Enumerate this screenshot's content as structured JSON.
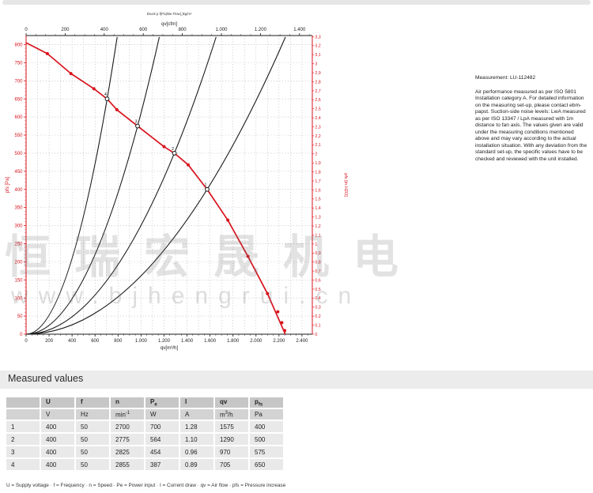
{
  "watermark": {
    "line1": "恒瑞宏晟机电",
    "line2": "www.bjhengrui.cn"
  },
  "side_text": {
    "measurement": "Measurement: LU-112482",
    "paragraph": "Air performance measured as per ISO 5801 Installation category A. For detailed information on the measuring set-up, please contact ebm-papst. Suction-side noise levels: LwA measured as per ISO 13347 / LpA measured with 1m distance to fan axis. The values given are valid under the measuring conditions mentioned above and may vary according to the actual installation situation. With any deviation from the standard set-up, the specific values have to be checked and reviewed with the unit installed."
  },
  "chart_data": {
    "type": "line",
    "title": "Druck p f(Pa)/Be Flow(,)kg/m³",
    "colors": {
      "axis_red": "#d8141e",
      "curve_red": "#d8141e",
      "black": "#1a1a1a",
      "grid": "#ababab"
    },
    "top_axis": {
      "label": "qv[cfm]",
      "tick_step": 200,
      "tick_labels": [
        "0",
        "200",
        "400",
        "600",
        "800",
        "1.000",
        "1.200",
        "1.400"
      ],
      "m3h_per_cfm": 1.699
    },
    "x_axis": {
      "label": "qv[m³/h]",
      "min": 0,
      "max": 2400,
      "plot_max": 2490,
      "major": 200,
      "minor": 50,
      "tick_labels": [
        "0",
        "200",
        "400",
        "600",
        "800",
        "1.000",
        "1.200",
        "1.400",
        "1.600",
        "1.800",
        "2.000",
        "2.200",
        "2.400"
      ]
    },
    "y_axis_left": {
      "label": "pfs [Pa]",
      "min": 0,
      "max": 800,
      "plot_max": 825,
      "major": 50,
      "minor": 10
    },
    "y_axis_right": {
      "label": "pfs [in H2O]",
      "min": 0,
      "max": 3.3,
      "step": 0.1,
      "pa_per_unit": 249.09
    },
    "fan_curve": {
      "points": [
        [
          0,
          805
        ],
        [
          185,
          775
        ],
        [
          390,
          720
        ],
        [
          590,
          678
        ],
        [
          705,
          650
        ],
        [
          790,
          620
        ],
        [
          970,
          575
        ],
        [
          1200,
          518
        ],
        [
          1290,
          500
        ],
        [
          1410,
          468
        ],
        [
          1575,
          400
        ],
        [
          1755,
          315
        ],
        [
          1930,
          215
        ],
        [
          2100,
          112
        ],
        [
          2255,
          0
        ]
      ],
      "markers": [
        [
          185,
          775
        ],
        [
          390,
          720
        ],
        [
          590,
          678
        ],
        [
          790,
          620
        ],
        [
          1200,
          518
        ],
        [
          1410,
          468
        ],
        [
          1755,
          315
        ],
        [
          1930,
          215
        ],
        [
          2100,
          112
        ],
        [
          2190,
          62
        ],
        [
          2225,
          32
        ],
        [
          2250,
          10
        ]
      ]
    },
    "operating_points": [
      {
        "label": "1",
        "qv": 1575,
        "pfs": 400
      },
      {
        "label": "2",
        "qv": 1290,
        "pfs": 500
      },
      {
        "label": "3",
        "qv": 970,
        "pfs": 575
      },
      {
        "label": "4",
        "qv": 705,
        "pfs": 650
      }
    ],
    "system_curves": [
      {
        "qv": 1575,
        "pfs": 400
      },
      {
        "qv": 1290,
        "pfs": 500
      },
      {
        "qv": 970,
        "pfs": 575
      },
      {
        "qv": 705,
        "pfs": 650
      }
    ]
  },
  "measured_values": {
    "title": "Measured values",
    "columns": [
      {
        "base": "",
        "sub": "",
        "unit": "",
        "unit_sup": "",
        "unit_rest": ""
      },
      {
        "base": "U",
        "sub": "",
        "unit": "V",
        "unit_sup": "",
        "unit_rest": ""
      },
      {
        "base": "f",
        "sub": "",
        "unit": "Hz",
        "unit_sup": "",
        "unit_rest": ""
      },
      {
        "base": "n",
        "sub": "",
        "unit": "min",
        "unit_sup": "-1",
        "unit_rest": ""
      },
      {
        "base": "P",
        "sub": "e",
        "unit": "W",
        "unit_sup": "",
        "unit_rest": ""
      },
      {
        "base": "I",
        "sub": "",
        "unit": "A",
        "unit_sup": "",
        "unit_rest": ""
      },
      {
        "base": "qv",
        "sub": "",
        "unit": "m",
        "unit_sup": "3",
        "unit_rest": "/h"
      },
      {
        "base": "p",
        "sub": "fs",
        "unit": "Pa",
        "unit_sup": "",
        "unit_rest": ""
      }
    ],
    "rows": [
      [
        "1",
        "400",
        "50",
        "2700",
        "700",
        "1.28",
        "1575",
        "400"
      ],
      [
        "2",
        "400",
        "50",
        "2775",
        "564",
        "1.10",
        "1290",
        "500"
      ],
      [
        "3",
        "400",
        "50",
        "2825",
        "454",
        "0.96",
        "970",
        "575"
      ],
      [
        "4",
        "400",
        "50",
        "2855",
        "387",
        "0.89",
        "705",
        "650"
      ]
    ],
    "legend": "U = Supply voltage · f = Frequency · n = Speed · Pe = Power input · I = Current draw · qv = Air flow · pfs = Pressure increase"
  }
}
